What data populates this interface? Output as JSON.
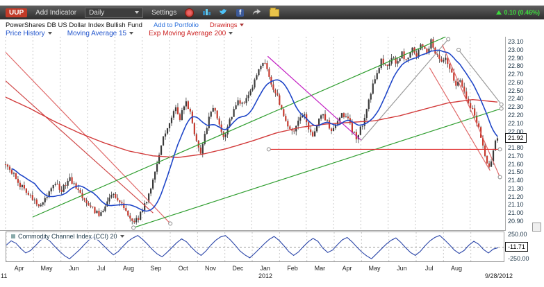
{
  "toolbar": {
    "symbol": "UUP",
    "add_indicator_label": "Add Indicator",
    "period_value": "Daily",
    "settings_label": "Settings",
    "change_text": "0.10 (0.46%)"
  },
  "header": {
    "fund_name": "PowerShares DB US Dollar Index Bullish Fund",
    "add_to_portfolio_label": "Add to Portfolio",
    "drawings_label": "Drawings"
  },
  "legend": {
    "price_history_label": "Price History",
    "ma_label": "Moving Average 15",
    "ema_label": "Exp Moving Average 200"
  },
  "price_axis": {
    "labels": [
      "23.10",
      "23.00",
      "22.90",
      "22.80",
      "22.70",
      "22.60",
      "22.50",
      "22.40",
      "22.30",
      "22.20",
      "22.10",
      "22.00",
      "21.80",
      "21.70",
      "21.60",
      "21.50",
      "21.40",
      "21.30",
      "21.20",
      "21.10",
      "21.00",
      "20.90"
    ],
    "current_price": "21.92"
  },
  "x_axis": {
    "months": [
      "Apr",
      "May",
      "Jun",
      "Jul",
      "Aug",
      "Sep",
      "Oct",
      "Nov",
      "Dec",
      "Jan",
      "Feb",
      "Mar",
      "Apr",
      "May",
      "Jun",
      "Jul",
      "Aug"
    ],
    "year_partial_left": "11",
    "year_center": "2012",
    "last_date": "9/28/2012"
  },
  "cci_panel": {
    "label": "Commodity Channel Index (CCI) 20",
    "axis_max": "250.00",
    "axis_min": "-250.00",
    "current_value": "-11.71"
  },
  "chart_data": {
    "type": "candlestick",
    "title": "UUP daily candles with Moving Average 15, Exp Moving Average 200, trendline drawings, and CCI(20) sub-chart",
    "ylim": [
      20.8,
      23.16
    ],
    "num_candles": 238,
    "ma15_window": 15,
    "price_anchors": [
      [
        0.0,
        21.62
      ],
      [
        0.012,
        21.5
      ],
      [
        0.025,
        21.38
      ],
      [
        0.04,
        21.28
      ],
      [
        0.055,
        21.18
      ],
      [
        0.07,
        21.1
      ],
      [
        0.085,
        21.22
      ],
      [
        0.1,
        21.35
      ],
      [
        0.115,
        21.28
      ],
      [
        0.13,
        21.42
      ],
      [
        0.145,
        21.3
      ],
      [
        0.16,
        21.18
      ],
      [
        0.175,
        21.05
      ],
      [
        0.19,
        20.98
      ],
      [
        0.205,
        21.12
      ],
      [
        0.22,
        21.25
      ],
      [
        0.235,
        21.1
      ],
      [
        0.25,
        20.95
      ],
      [
        0.265,
        20.9
      ],
      [
        0.28,
        21.05
      ],
      [
        0.295,
        21.3
      ],
      [
        0.305,
        21.55
      ],
      [
        0.315,
        21.8
      ],
      [
        0.325,
        22.0
      ],
      [
        0.335,
        22.15
      ],
      [
        0.345,
        22.3
      ],
      [
        0.355,
        22.15
      ],
      [
        0.365,
        22.38
      ],
      [
        0.375,
        22.25
      ],
      [
        0.385,
        21.95
      ],
      [
        0.395,
        21.72
      ],
      [
        0.405,
        21.95
      ],
      [
        0.415,
        22.18
      ],
      [
        0.425,
        22.32
      ],
      [
        0.435,
        22.05
      ],
      [
        0.445,
        21.92
      ],
      [
        0.455,
        22.12
      ],
      [
        0.465,
        22.28
      ],
      [
        0.475,
        22.38
      ],
      [
        0.485,
        22.32
      ],
      [
        0.495,
        22.48
      ],
      [
        0.505,
        22.58
      ],
      [
        0.515,
        22.78
      ],
      [
        0.525,
        22.85
      ],
      [
        0.535,
        22.68
      ],
      [
        0.545,
        22.52
      ],
      [
        0.555,
        22.38
      ],
      [
        0.565,
        22.22
      ],
      [
        0.575,
        22.05
      ],
      [
        0.585,
        21.95
      ],
      [
        0.595,
        22.12
      ],
      [
        0.605,
        22.22
      ],
      [
        0.615,
        22.05
      ],
      [
        0.625,
        21.95
      ],
      [
        0.635,
        22.12
      ],
      [
        0.645,
        22.22
      ],
      [
        0.655,
        22.1
      ],
      [
        0.665,
        22.0
      ],
      [
        0.675,
        22.12
      ],
      [
        0.685,
        22.22
      ],
      [
        0.695,
        22.15
      ],
      [
        0.705,
        22.0
      ],
      [
        0.715,
        21.92
      ],
      [
        0.725,
        22.08
      ],
      [
        0.735,
        22.32
      ],
      [
        0.745,
        22.52
      ],
      [
        0.755,
        22.72
      ],
      [
        0.765,
        22.88
      ],
      [
        0.775,
        22.78
      ],
      [
        0.785,
        22.92
      ],
      [
        0.795,
        22.82
      ],
      [
        0.805,
        22.96
      ],
      [
        0.815,
        22.86
      ],
      [
        0.825,
        23.02
      ],
      [
        0.835,
        22.92
      ],
      [
        0.845,
        23.06
      ],
      [
        0.855,
        22.96
      ],
      [
        0.865,
        23.1
      ],
      [
        0.875,
        22.96
      ],
      [
        0.885,
        22.82
      ],
      [
        0.895,
        22.88
      ],
      [
        0.905,
        22.72
      ],
      [
        0.915,
        22.58
      ],
      [
        0.925,
        22.62
      ],
      [
        0.935,
        22.45
      ],
      [
        0.945,
        22.32
      ],
      [
        0.955,
        22.18
      ],
      [
        0.965,
        21.98
      ],
      [
        0.975,
        21.68
      ],
      [
        0.985,
        21.55
      ],
      [
        0.993,
        21.82
      ],
      [
        1.0,
        21.92
      ]
    ],
    "ema200_path": [
      [
        0.0,
        22.42
      ],
      [
        0.05,
        22.28
      ],
      [
        0.1,
        22.12
      ],
      [
        0.15,
        21.98
      ],
      [
        0.2,
        21.86
      ],
      [
        0.25,
        21.76
      ],
      [
        0.3,
        21.7
      ],
      [
        0.35,
        21.68
      ],
      [
        0.4,
        21.72
      ],
      [
        0.45,
        21.79
      ],
      [
        0.5,
        21.88
      ],
      [
        0.55,
        21.98
      ],
      [
        0.6,
        22.05
      ],
      [
        0.65,
        22.09
      ],
      [
        0.7,
        22.11
      ],
      [
        0.75,
        22.13
      ],
      [
        0.8,
        22.19
      ],
      [
        0.85,
        22.27
      ],
      [
        0.9,
        22.35
      ],
      [
        0.95,
        22.39
      ],
      [
        1.0,
        22.36
      ]
    ],
    "trendlines": [
      {
        "name": "downtrend-upper-left",
        "x1": 0.0,
        "y1": 22.97,
        "x2": 0.335,
        "y2": 20.87,
        "color": "#e06a6a",
        "handles": [
          "end"
        ]
      },
      {
        "name": "downtrend-lower-left",
        "x1": 0.0,
        "y1": 22.62,
        "x2": 0.3,
        "y2": 21.0,
        "color": "#d04a4a",
        "handles": []
      },
      {
        "name": "uptrend-channel-upper",
        "x1": 0.055,
        "y1": 20.95,
        "x2": 0.895,
        "y2": 23.16,
        "color": "#2f9e2f",
        "handles": []
      },
      {
        "name": "uptrend-channel-lower",
        "x1": 0.26,
        "y1": 20.82,
        "x2": 1.008,
        "y2": 22.28,
        "color": "#2f9e2f",
        "handles": [
          "start",
          "end"
        ]
      },
      {
        "name": "jan-may-downtrend",
        "x1": 0.533,
        "y1": 22.92,
        "x2": 0.723,
        "y2": 21.89,
        "color": "#c320c3",
        "handles": []
      },
      {
        "name": "may-jul-uptrend",
        "x1": 0.723,
        "y1": 21.89,
        "x2": 0.9,
        "y2": 23.13,
        "color": "#9a9a9a",
        "handles": [
          "end"
        ]
      },
      {
        "name": "aug-sep-gray-downtrend",
        "x1": 0.921,
        "y1": 23.0,
        "x2": 1.008,
        "y2": 22.33,
        "color": "#9a9a9a",
        "handles": [
          "start",
          "end"
        ]
      },
      {
        "name": "sep-downtrend-outer",
        "x1": 0.888,
        "y1": 23.06,
        "x2": 1.005,
        "y2": 21.44,
        "color": "#e06a6a",
        "handles": [
          "end"
        ]
      },
      {
        "name": "sep-downtrend-inner",
        "x1": 0.862,
        "y1": 22.78,
        "x2": 0.985,
        "y2": 21.52,
        "color": "#e06a6a",
        "handles": []
      },
      {
        "name": "support-line-2178",
        "x1": 0.535,
        "y1": 21.78,
        "x2": 1.005,
        "y2": 21.78,
        "color": "#e03030",
        "handles": [
          "start",
          "end"
        ]
      }
    ],
    "cci_range": [
      -250,
      250
    ],
    "cci_values": [
      40,
      130,
      80,
      -30,
      -120,
      -70,
      30,
      140,
      200,
      120,
      10,
      -90,
      -180,
      -240,
      -150,
      -60,
      50,
      150,
      210,
      130,
      30,
      -70,
      -160,
      -90,
      20,
      120,
      190,
      240,
      160,
      60,
      -50,
      -140,
      -200,
      -110,
      -10,
      90,
      170,
      110,
      0,
      -100,
      -170,
      -80,
      40,
      140,
      210,
      240,
      150,
      40,
      -80,
      -160,
      -220,
      -130,
      -30,
      70,
      160,
      220,
      140,
      30,
      -90,
      -170,
      -100,
      10,
      110,
      180,
      120,
      -20,
      -110,
      -60,
      50,
      150,
      200,
      110,
      0,
      -100,
      -180,
      -240,
      -140,
      -40,
      60,
      140,
      190,
      100,
      -10,
      -110,
      -170,
      -90,
      30,
      130,
      200,
      240,
      150,
      50,
      -60,
      -130,
      -70,
      40,
      120,
      60,
      -50,
      -120,
      -40,
      -11.71
    ],
    "colors": {
      "up_candle": "#3a3a3a",
      "down_candle": "#c63b2f",
      "wick": "#222222",
      "ma15": "#1f46c8",
      "ema200": "#d23a3a",
      "cci_line": "#2a45a8",
      "grid": "#c9c9c9",
      "change_green": "#3ddc3d"
    }
  }
}
